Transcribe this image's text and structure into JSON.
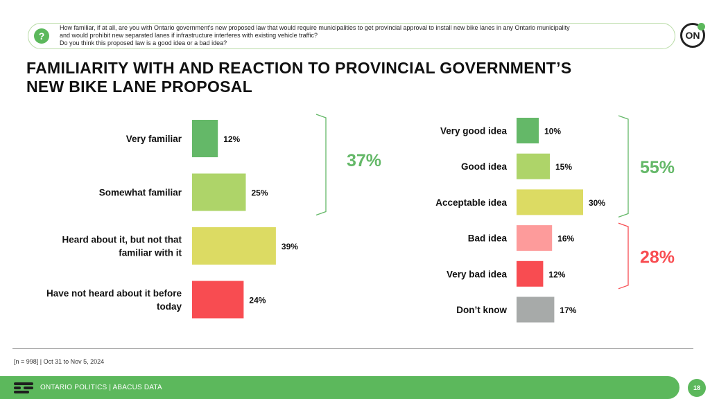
{
  "question": {
    "line1": "How familiar, if at all, are you with Ontario government's new proposed law that would require municipalities to get provincial approval to install new bike lanes in any Ontario municipality",
    "line2": "and would prohibit new separated lanes if infrastructure interferes with existing vehicle traffic?",
    "line3": "Do you think this proposed law is a good idea or a bad idea?"
  },
  "logo_text": "ON",
  "title": {
    "line1": "FAMILIARITY WITH AND REACTION TO PROVINCIAL GOVERNMENT’S",
    "line2": "NEW BIKE LANE PROPOSAL"
  },
  "chart_data": [
    {
      "type": "bar",
      "orientation": "horizontal",
      "categories": [
        [
          "Very familiar"
        ],
        [
          "Somewhat familiar"
        ],
        [
          "Heard about it, but not that",
          "familiar with it"
        ],
        [
          "Have not heard about it before",
          "today"
        ]
      ],
      "values": [
        12,
        25,
        39,
        24
      ],
      "value_labels": [
        "12%",
        "25%",
        "39%",
        "24%"
      ],
      "colors": [
        "#64b868",
        "#aed469",
        "#dcdb63",
        "#f84c51"
      ],
      "brackets": [
        {
          "label": "37%",
          "from_index": 0,
          "to_index": 1,
          "color": "#64b868"
        }
      ]
    },
    {
      "type": "bar",
      "orientation": "horizontal",
      "categories": [
        [
          "Very good idea"
        ],
        [
          "Good idea"
        ],
        [
          "Acceptable idea"
        ],
        [
          "Bad idea"
        ],
        [
          "Very bad idea"
        ],
        [
          "Don’t know"
        ]
      ],
      "values": [
        10,
        15,
        30,
        16,
        12,
        17
      ],
      "value_labels": [
        "10%",
        "15%",
        "30%",
        "16%",
        "12%",
        "17%"
      ],
      "colors": [
        "#64b868",
        "#aed469",
        "#dcdb63",
        "#fd9b9b",
        "#f84c51",
        "#a7aaa9"
      ],
      "brackets": [
        {
          "label": "55%",
          "from_index": 0,
          "to_index": 2,
          "color": "#64b868"
        },
        {
          "label": "28%",
          "from_index": 3,
          "to_index": 4,
          "color": "#f84c51"
        }
      ]
    }
  ],
  "footnote": "[n = 998] | Oct 31 to Nov 5, 2024",
  "footer": {
    "text": "ONTARIO POLITICS | ABACUS DATA",
    "page": "18"
  }
}
